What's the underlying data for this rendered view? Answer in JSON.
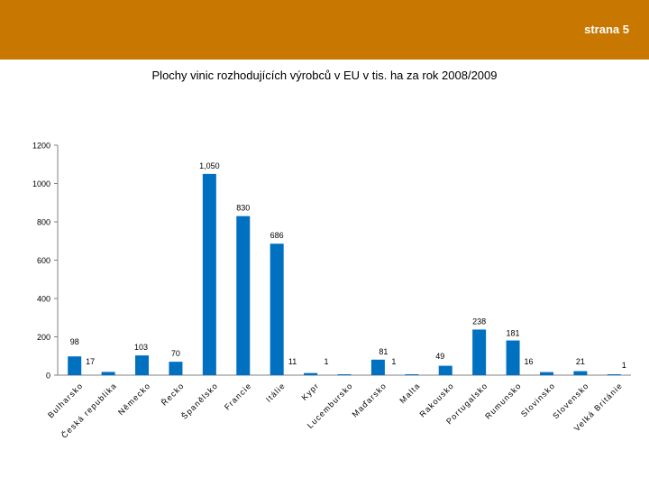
{
  "header": {
    "page_label": "strana 5",
    "band_color": "#c87800"
  },
  "chart_data": {
    "type": "bar",
    "title": "Plochy vinic rozhodujících výrobců v EU v tis. ha za rok 2008/2009",
    "xlabel": "",
    "ylabel": "",
    "ylim": [
      0,
      1200
    ],
    "yticks": [
      0,
      200,
      400,
      600,
      800,
      1000,
      1200
    ],
    "grid": false,
    "legend": "none",
    "bar_color": "#0070c0",
    "categories": [
      "Bulharsko",
      "Česká republika",
      "Německo",
      "Řecko",
      "Španělsko",
      "Francie",
      "Itálie",
      "Kypr",
      "Lucembursko",
      "Maďarsko",
      "Malta",
      "Rakousko",
      "Portugalsko",
      "Rumunsko",
      "Slovinsko",
      "Slovensko",
      "Velká Británie"
    ],
    "values": [
      98,
      17,
      103,
      70,
      1050,
      830,
      686,
      11,
      1,
      81,
      1,
      49,
      238,
      181,
      16,
      21,
      1
    ],
    "data_labels": [
      "98",
      "17",
      "103",
      "70",
      "1,050",
      "830",
      "686",
      "11",
      "1",
      "81",
      "1",
      "49",
      "238",
      "181",
      "16",
      "21",
      "1"
    ]
  }
}
